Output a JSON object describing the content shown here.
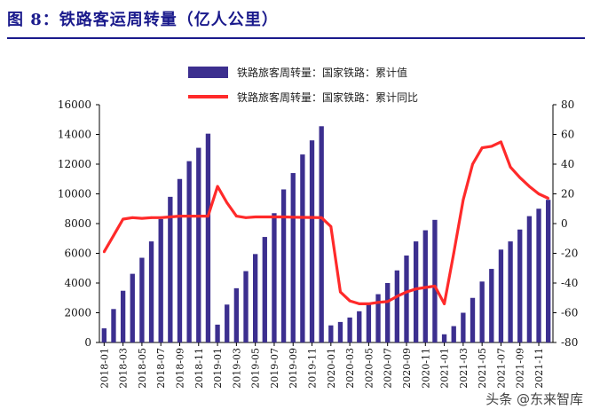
{
  "page": {
    "title": "图 8：铁路客运周转量（亿人公里）",
    "watermark": "头条 @东来智库"
  },
  "colors": {
    "bar": "#3c2f8f",
    "line": "#ff2a2a",
    "axis": "#000000",
    "title": "#1a1a8c"
  },
  "chart_data": {
    "type": "bar",
    "categories": [
      "2018-01",
      "2018-02",
      "2018-03",
      "2018-04",
      "2018-05",
      "2018-06",
      "2018-07",
      "2018-08",
      "2018-09",
      "2018-10",
      "2018-11",
      "2018-12",
      "2019-01",
      "2019-02",
      "2019-03",
      "2019-04",
      "2019-05",
      "2019-06",
      "2019-07",
      "2019-08",
      "2019-09",
      "2019-10",
      "2019-11",
      "2019-12",
      "2020-01",
      "2020-02",
      "2020-03",
      "2020-04",
      "2020-05",
      "2020-06",
      "2020-07",
      "2020-08",
      "2020-09",
      "2020-10",
      "2020-11",
      "2020-12",
      "2021-01",
      "2021-02",
      "2021-03",
      "2021-04",
      "2021-05",
      "2021-06",
      "2021-07",
      "2021-08",
      "2021-09",
      "2021-10",
      "2021-11",
      "2021-12"
    ],
    "tick_labels": [
      "2018-01",
      "2018-03",
      "2018-05",
      "2018-07",
      "2018-09",
      "2018-11",
      "2019-01",
      "2019-03",
      "2019-05",
      "2019-07",
      "2019-09",
      "2019-11",
      "2020-01",
      "2020-03",
      "2020-05",
      "2020-07",
      "2020-09",
      "2020-11",
      "2021-01",
      "2021-03",
      "2021-05",
      "2021-07",
      "2021-09",
      "2021-11"
    ],
    "series": [
      {
        "name": "铁路旅客周转量：国家铁路：累计值",
        "type": "bar",
        "axis": "left",
        "values": [
          950,
          2250,
          3480,
          4620,
          5700,
          6800,
          8300,
          9800,
          11000,
          12200,
          13100,
          14050,
          1200,
          2550,
          3650,
          4800,
          5950,
          7100,
          8700,
          10300,
          11400,
          12650,
          13600,
          14550,
          1150,
          1380,
          1680,
          2100,
          2650,
          3250,
          4000,
          4850,
          5850,
          6800,
          7550,
          8250,
          550,
          1100,
          2000,
          3000,
          4100,
          4950,
          6250,
          6800,
          7600,
          8500,
          9000,
          9600
        ]
      },
      {
        "name": "铁路旅客周转量：国家铁路：累计同比",
        "type": "line",
        "axis": "right",
        "values": [
          -19,
          -8,
          3,
          4,
          3.5,
          4,
          4,
          4.5,
          5,
          5,
          5,
          5,
          25,
          14,
          5,
          4,
          4.5,
          4.5,
          4.5,
          4.5,
          4.3,
          4.2,
          4.1,
          4,
          -2,
          -46,
          -52,
          -54,
          -54,
          -53,
          -52.5,
          -49,
          -46,
          -44,
          -43,
          -42,
          -54,
          -20,
          16,
          40,
          51,
          52,
          55,
          38,
          31,
          25,
          20,
          17
        ]
      }
    ],
    "y_left": {
      "min": 0,
      "max": 16000,
      "ticks": [
        0,
        2000,
        4000,
        6000,
        8000,
        10000,
        12000,
        14000,
        16000
      ]
    },
    "y_right": {
      "min": -80,
      "max": 80,
      "ticks": [
        -80,
        -60,
        -40,
        -20,
        0,
        20,
        40,
        60,
        80
      ]
    },
    "legend": "top-center",
    "grid": false
  }
}
